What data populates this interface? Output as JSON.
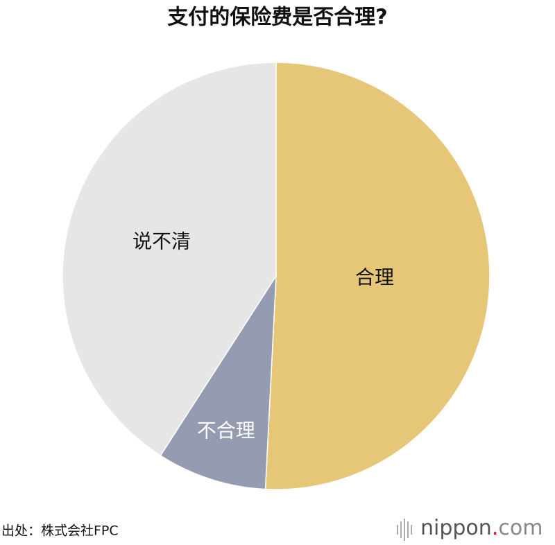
{
  "chart_data": {
    "type": "pie",
    "title": "支付的保险费是否合理?",
    "categories": [
      "合理",
      "不合理",
      "说不清"
    ],
    "values": [
      50.8,
      8.3,
      40.9
    ],
    "colors": [
      "#e6c677",
      "#959bb0",
      "#e6e6e6"
    ],
    "label_colors": [
      "#111111",
      "#ffffff",
      "#111111"
    ],
    "start_angle": 0,
    "direction": "clockwise"
  },
  "footer": {
    "source": "出处：株式会社FPC",
    "logo_name": "nippon",
    "logo_dot": ".",
    "logo_tld": "com"
  }
}
